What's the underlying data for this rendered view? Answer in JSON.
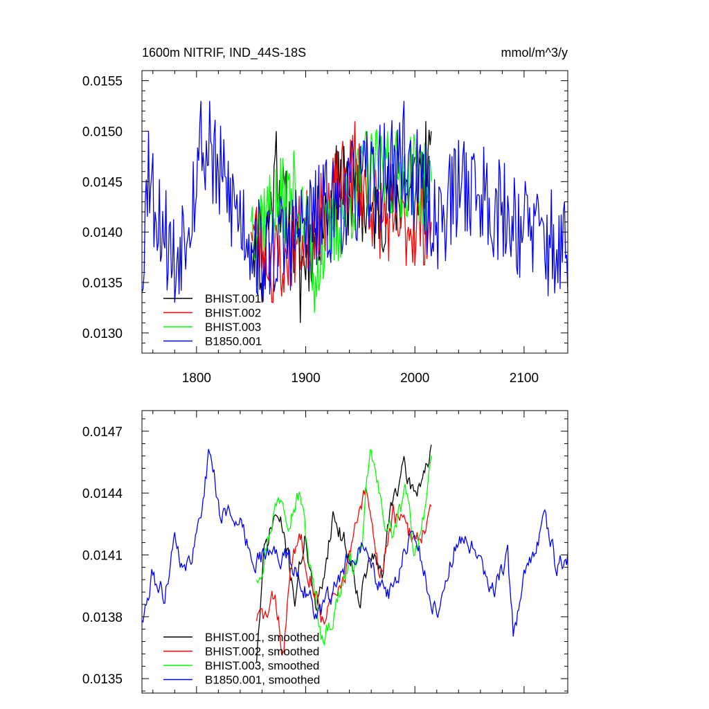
{
  "chart_data": [
    {
      "type": "line",
      "title": "1600m NITRIF, IND_44S-18S",
      "units": "mmol/m^3/y",
      "xlabel": "",
      "ylabel": "",
      "xlim": [
        1750,
        2140
      ],
      "ylim": [
        0.0128,
        0.0156
      ],
      "x_ticks": [
        1800,
        1900,
        2000,
        2100
      ],
      "x_tick_labels": [
        "1800",
        "1900",
        "2000",
        "2100"
      ],
      "y_ticks": [
        0.013,
        0.0135,
        0.014,
        0.0145,
        0.015,
        0.0155
      ],
      "y_tick_labels": [
        "0.0130",
        "0.0135",
        "0.0140",
        "0.0145",
        "0.0150",
        "0.0155"
      ],
      "grid": false,
      "legend_position": "bottom-left",
      "series": [
        {
          "name": "BHIST.001",
          "color": "#000000",
          "x_start": 1850,
          "x_end": 2015,
          "mean": 0.01415,
          "amp": 0.00045,
          "seed": 11,
          "anchors": [
            [
              1850,
              0.0139
            ],
            [
              1860,
              0.0133
            ],
            [
              1873,
              0.015
            ],
            [
              1895,
              0.0131
            ],
            [
              1930,
              0.0148
            ],
            [
              1960,
              0.0142
            ],
            [
              1990,
              0.0146
            ],
            [
              2010,
              0.0151
            ],
            [
              2015,
              0.015
            ]
          ]
        },
        {
          "name": "BHIST.002",
          "color": "#ff0000",
          "x_start": 1850,
          "x_end": 2015,
          "mean": 0.0141,
          "amp": 0.00045,
          "seed": 23,
          "anchors": [
            [
              1850,
              0.014
            ],
            [
              1870,
              0.0133
            ],
            [
              1880,
              0.0134
            ],
            [
              1945,
              0.0151
            ],
            [
              1962,
              0.0144
            ],
            [
              1980,
              0.014
            ],
            [
              2015,
              0.0141
            ]
          ]
        },
        {
          "name": "BHIST.003",
          "color": "#00ff00",
          "x_start": 1850,
          "x_end": 2015,
          "mean": 0.01415,
          "amp": 0.00045,
          "seed": 37,
          "anchors": [
            [
              1850,
              0.0141
            ],
            [
              1890,
              0.0146
            ],
            [
              1908,
              0.0132
            ],
            [
              1955,
              0.015
            ],
            [
              1975,
              0.015
            ],
            [
              2002,
              0.015
            ],
            [
              2015,
              0.0145
            ]
          ]
        },
        {
          "name": "B1850.001",
          "color": "#0000ff",
          "x_start": 1750,
          "x_end": 2140,
          "mean": 0.01412,
          "amp": 0.00055,
          "seed": 53,
          "anchors": [
            [
              1750,
              0.0134
            ],
            [
              1756,
              0.015
            ],
            [
              1770,
              0.0139
            ],
            [
              1780,
              0.0133
            ],
            [
              1804,
              0.0153
            ],
            [
              1812,
              0.0153
            ],
            [
              1860,
              0.0134
            ],
            [
              1990,
              0.0153
            ],
            [
              2020,
              0.0141
            ],
            [
              2045,
              0.0149
            ],
            [
              2080,
              0.0143
            ],
            [
              2140,
              0.0134
            ]
          ]
        }
      ]
    },
    {
      "type": "line",
      "title": "",
      "xlabel": "",
      "ylabel": "",
      "xlim": [
        1750,
        2140
      ],
      "ylim": [
        0.01343,
        0.0148
      ],
      "x_ticks": [
        1800,
        1900,
        2000,
        2100
      ],
      "y_ticks": [
        0.0135,
        0.0138,
        0.0141,
        0.0144,
        0.0147
      ],
      "y_tick_labels": [
        "0.0135",
        "0.0138",
        "0.0141",
        "0.0144",
        "0.0147"
      ],
      "grid": false,
      "legend_position": "bottom-left",
      "series": [
        {
          "name": "BHIST.001, smoothed",
          "color": "#000000",
          "x_start": 1855,
          "x_end": 2015,
          "seed": 71,
          "anchors": [
            [
              1855,
              0.0136
            ],
            [
              1862,
              0.0141
            ],
            [
              1872,
              0.0143
            ],
            [
              1880,
              0.0142
            ],
            [
              1890,
              0.0139
            ],
            [
              1900,
              0.0142
            ],
            [
              1910,
              0.0138
            ],
            [
              1925,
              0.0143
            ],
            [
              1940,
              0.0141
            ],
            [
              1950,
              0.0139
            ],
            [
              1960,
              0.0141
            ],
            [
              1970,
              0.014
            ],
            [
              1980,
              0.0144
            ],
            [
              1990,
              0.0145
            ],
            [
              2000,
              0.0144
            ],
            [
              2015,
              0.0146
            ]
          ]
        },
        {
          "name": "BHIST.002, smoothed",
          "color": "#ff0000",
          "x_start": 1855,
          "x_end": 2015,
          "seed": 83,
          "anchors": [
            [
              1855,
              0.0138
            ],
            [
              1865,
              0.0138
            ],
            [
              1872,
              0.0139
            ],
            [
              1880,
              0.0136
            ],
            [
              1885,
              0.014
            ],
            [
              1895,
              0.0142
            ],
            [
              1905,
              0.014
            ],
            [
              1915,
              0.0138
            ],
            [
              1930,
              0.0139
            ],
            [
              1945,
              0.0142
            ],
            [
              1955,
              0.0144
            ],
            [
              1968,
              0.014
            ],
            [
              1980,
              0.0143
            ],
            [
              1995,
              0.0142
            ],
            [
              2005,
              0.0142
            ],
            [
              2015,
              0.0143
            ]
          ]
        },
        {
          "name": "BHIST.003, smoothed",
          "color": "#00ff00",
          "x_start": 1855,
          "x_end": 2015,
          "seed": 97,
          "anchors": [
            [
              1855,
              0.014
            ],
            [
              1862,
              0.0141
            ],
            [
              1870,
              0.0143
            ],
            [
              1878,
              0.0144
            ],
            [
              1885,
              0.0143
            ],
            [
              1895,
              0.0144
            ],
            [
              1905,
              0.014
            ],
            [
              1915,
              0.0137
            ],
            [
              1925,
              0.0138
            ],
            [
              1935,
              0.014
            ],
            [
              1950,
              0.0141
            ],
            [
              1960,
              0.0146
            ],
            [
              1970,
              0.0143
            ],
            [
              1980,
              0.0142
            ],
            [
              1992,
              0.0144
            ],
            [
              2000,
              0.0141
            ],
            [
              2015,
              0.0145
            ]
          ]
        },
        {
          "name": "B1850.001, smoothed",
          "color": "#0000ff",
          "x_start": 1750,
          "x_end": 2140,
          "seed": 111,
          "anchors": [
            [
              1752,
              0.0138
            ],
            [
              1760,
              0.014
            ],
            [
              1770,
              0.0139
            ],
            [
              1780,
              0.0142
            ],
            [
              1790,
              0.014
            ],
            [
              1800,
              0.0142
            ],
            [
              1812,
              0.0146
            ],
            [
              1822,
              0.0143
            ],
            [
              1835,
              0.0143
            ],
            [
              1850,
              0.0141
            ],
            [
              1865,
              0.0141
            ],
            [
              1880,
              0.0141
            ],
            [
              1895,
              0.014
            ],
            [
              1910,
              0.0138
            ],
            [
              1925,
              0.0139
            ],
            [
              1940,
              0.0141
            ],
            [
              1955,
              0.0142
            ],
            [
              1965,
              0.014
            ],
            [
              1980,
              0.0139
            ],
            [
              1990,
              0.0141
            ],
            [
              2000,
              0.0142
            ],
            [
              2010,
              0.014
            ],
            [
              2015,
              0.0138
            ],
            [
              2025,
              0.0139
            ],
            [
              2040,
              0.0142
            ],
            [
              2055,
              0.0141
            ],
            [
              2070,
              0.0139
            ],
            [
              2085,
              0.0141
            ],
            [
              2090,
              0.0137
            ],
            [
              2100,
              0.014
            ],
            [
              2110,
              0.0141
            ],
            [
              2120,
              0.0143
            ],
            [
              2130,
              0.014
            ],
            [
              2138,
              0.0141
            ]
          ]
        }
      ]
    }
  ]
}
